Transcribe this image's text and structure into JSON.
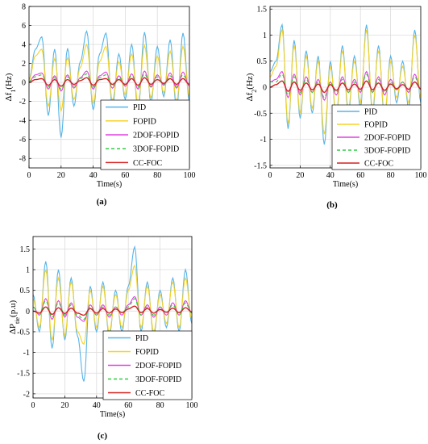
{
  "colors": {
    "PID": "#56b4e9",
    "FOPID": "#f5d327",
    "2DOF-FOPID": "#e040e0",
    "3DOF-FOPID": "#2ecc40",
    "CC-FOC": "#d62020",
    "grid": "#dcdcdc",
    "axis": "#000000"
  },
  "legend_entries": [
    "PID",
    "FOPID",
    "2DOF-FOPID",
    "3DOF-FOPID",
    "CC-FOC"
  ],
  "chart_data": [
    {
      "type": "line",
      "panel_label": "(a)",
      "xlabel": "Time(s)",
      "ylabel": "Δf₁(Hz)",
      "xlim": [
        0,
        100
      ],
      "ylim": [
        -9,
        8
      ],
      "xticks": [
        0,
        20,
        40,
        60,
        80,
        100
      ],
      "yticks": [
        -8,
        -6,
        -4,
        -2,
        0,
        2,
        4,
        6,
        8
      ],
      "grid": true,
      "legend_position": "lower-right",
      "x": [
        0,
        4,
        8,
        12,
        16,
        20,
        24,
        28,
        32,
        36,
        40,
        44,
        48,
        52,
        56,
        60,
        64,
        68,
        72,
        76,
        80,
        84,
        88,
        92,
        96,
        100
      ],
      "series": [
        {
          "name": "PID",
          "values": [
            0.3,
            3.5,
            4.8,
            -3.5,
            3.5,
            -5.8,
            3.6,
            -2.5,
            2.2,
            5.4,
            -2.9,
            3.0,
            5.2,
            -2.6,
            3.0,
            -1.8,
            4.0,
            -3.0,
            5.3,
            -2.1,
            3.8,
            -1.5,
            4.5,
            -2.8,
            5.2,
            -2.0
          ]
        },
        {
          "name": "FOPID",
          "values": [
            0.2,
            2.8,
            3.5,
            -2.5,
            2.5,
            -3.0,
            2.6,
            -1.8,
            1.6,
            4.0,
            -2.2,
            2.2,
            3.8,
            -1.9,
            2.2,
            -1.3,
            3.0,
            -2.2,
            3.9,
            -1.6,
            2.8,
            -1.1,
            3.3,
            -2.0,
            3.8,
            -1.5
          ]
        },
        {
          "name": "2DOF-FOPID",
          "values": [
            0.1,
            0.8,
            1.0,
            -0.7,
            0.7,
            -0.9,
            0.8,
            -0.6,
            0.5,
            1.2,
            -0.7,
            0.7,
            1.1,
            -0.6,
            0.7,
            -0.4,
            0.9,
            -0.7,
            1.2,
            -0.5,
            0.8,
            -0.3,
            1.0,
            -0.6,
            1.1,
            -0.4
          ]
        },
        {
          "name": "3DOF-FOPID",
          "values": [
            0.1,
            0.6,
            0.8,
            -0.5,
            0.5,
            -0.7,
            0.6,
            -0.4,
            0.4,
            0.9,
            -0.5,
            0.5,
            0.8,
            -0.4,
            0.5,
            -0.3,
            0.7,
            -0.5,
            0.9,
            -0.4,
            0.6,
            -0.2,
            0.7,
            -0.4,
            0.8,
            -0.3
          ]
        },
        {
          "name": "CC-FOC",
          "values": [
            0.0,
            0.3,
            0.4,
            -0.3,
            0.3,
            -0.4,
            0.3,
            -0.2,
            0.2,
            0.5,
            -0.3,
            0.3,
            0.4,
            -0.2,
            0.3,
            -0.2,
            0.4,
            -0.3,
            0.5,
            -0.2,
            0.3,
            -0.1,
            0.4,
            -0.2,
            0.4,
            -0.2
          ]
        }
      ]
    },
    {
      "type": "line",
      "panel_label": "(b)",
      "xlabel": "Time(s)",
      "ylabel": "Δf₂(Hz)",
      "xlim": [
        0,
        100
      ],
      "ylim": [
        -1.55,
        1.55
      ],
      "xticks": [
        0,
        20,
        40,
        60,
        80,
        100
      ],
      "yticks": [
        -1.5,
        -1,
        -0.5,
        0,
        0.5,
        1,
        1.5
      ],
      "grid": true,
      "legend_position": "lower-right",
      "x": [
        0,
        4,
        8,
        12,
        16,
        20,
        24,
        28,
        32,
        36,
        40,
        44,
        48,
        52,
        56,
        60,
        64,
        68,
        72,
        76,
        80,
        84,
        88,
        92,
        96,
        100
      ],
      "series": [
        {
          "name": "PID",
          "values": [
            0.3,
            0.5,
            1.2,
            -0.8,
            0.9,
            -0.6,
            0.7,
            -0.5,
            0.6,
            -1.1,
            0.5,
            -0.6,
            0.8,
            -0.5,
            0.6,
            -0.4,
            1.2,
            -0.5,
            0.8,
            -0.6,
            0.6,
            -0.3,
            0.5,
            -0.4,
            1.1,
            -0.3
          ]
        },
        {
          "name": "FOPID",
          "values": [
            0.2,
            0.4,
            1.1,
            -0.7,
            0.8,
            -0.5,
            0.6,
            -0.4,
            0.5,
            -0.9,
            0.4,
            -0.5,
            0.7,
            -0.4,
            0.5,
            -0.3,
            1.1,
            -0.4,
            0.7,
            -0.5,
            0.5,
            -0.2,
            0.4,
            -0.3,
            1.0,
            -0.2
          ]
        },
        {
          "name": "2DOF-FOPID",
          "values": [
            0.1,
            0.15,
            0.3,
            -0.2,
            0.25,
            -0.15,
            0.2,
            -0.1,
            0.15,
            -0.25,
            0.1,
            -0.15,
            0.2,
            -0.1,
            0.15,
            -0.1,
            0.3,
            -0.1,
            0.2,
            -0.15,
            0.15,
            -0.05,
            0.1,
            -0.1,
            0.25,
            -0.05
          ]
        },
        {
          "name": "3DOF-FOPID",
          "values": [
            0.1,
            0.1,
            0.25,
            -0.15,
            0.2,
            -0.1,
            0.15,
            -0.1,
            0.1,
            -0.2,
            0.1,
            -0.1,
            0.15,
            -0.1,
            0.1,
            -0.05,
            0.25,
            -0.1,
            0.15,
            -0.1,
            0.1,
            -0.05,
            0.1,
            -0.05,
            0.2,
            -0.05
          ]
        },
        {
          "name": "CC-FOC",
          "values": [
            0.0,
            0.05,
            0.12,
            -0.08,
            0.1,
            -0.06,
            0.08,
            -0.05,
            0.06,
            -0.1,
            0.05,
            -0.06,
            0.08,
            -0.05,
            0.06,
            -0.04,
            0.12,
            -0.05,
            0.08,
            -0.06,
            0.06,
            -0.03,
            0.05,
            -0.04,
            0.1,
            -0.03
          ]
        }
      ]
    },
    {
      "type": "line",
      "panel_label": "(c)",
      "xlabel": "Time(s)",
      "ylabel": "ΔP_tie(p.u)",
      "xlim": [
        0,
        100
      ],
      "ylim": [
        -2.1,
        1.8
      ],
      "xticks": [
        0,
        20,
        40,
        60,
        80,
        100
      ],
      "yticks": [
        -2,
        -1.5,
        -1,
        -0.5,
        0,
        0.5,
        1,
        1.5
      ],
      "grid": true,
      "legend_position": "lower-right",
      "x": [
        0,
        4,
        8,
        12,
        16,
        20,
        24,
        28,
        32,
        36,
        40,
        44,
        48,
        52,
        56,
        60,
        64,
        68,
        72,
        76,
        80,
        84,
        88,
        92,
        96,
        100
      ],
      "series": [
        {
          "name": "PID",
          "values": [
            0.4,
            -0.5,
            1.2,
            -0.9,
            1.0,
            -0.7,
            0.8,
            -0.6,
            -1.7,
            0.6,
            -0.5,
            0.7,
            -0.6,
            0.5,
            -0.5,
            0.6,
            1.55,
            -0.5,
            0.7,
            -0.6,
            0.5,
            -0.4,
            0.8,
            -0.5,
            1.0,
            -0.3
          ]
        },
        {
          "name": "FOPID",
          "values": [
            0.3,
            -0.4,
            1.0,
            -0.7,
            0.8,
            -0.6,
            0.7,
            -0.5,
            -0.8,
            0.5,
            -0.4,
            0.6,
            -0.5,
            0.4,
            -0.4,
            0.5,
            1.1,
            -0.4,
            0.6,
            -0.5,
            0.4,
            -0.3,
            0.7,
            -0.4,
            0.8,
            -0.2
          ]
        },
        {
          "name": "2DOF-FOPID",
          "values": [
            0.1,
            -0.1,
            0.3,
            -0.2,
            0.25,
            -0.15,
            0.2,
            -0.15,
            -0.25,
            0.15,
            -0.1,
            0.15,
            -0.15,
            0.1,
            -0.1,
            0.15,
            0.35,
            -0.1,
            0.15,
            -0.15,
            0.1,
            -0.1,
            0.2,
            -0.1,
            0.25,
            -0.05
          ]
        },
        {
          "name": "3DOF-FOPID",
          "values": [
            0.1,
            -0.1,
            0.25,
            -0.15,
            0.2,
            -0.1,
            0.15,
            -0.1,
            -0.2,
            0.1,
            -0.1,
            0.1,
            -0.1,
            0.1,
            -0.05,
            0.1,
            0.3,
            -0.1,
            0.1,
            -0.1,
            0.1,
            -0.05,
            0.15,
            -0.1,
            0.2,
            -0.05
          ]
        },
        {
          "name": "CC-FOC",
          "values": [
            0.0,
            -0.05,
            0.1,
            -0.08,
            0.08,
            -0.06,
            0.07,
            -0.05,
            -0.1,
            0.06,
            -0.05,
            0.06,
            -0.05,
            0.05,
            -0.04,
            0.05,
            0.12,
            -0.04,
            0.06,
            -0.05,
            0.04,
            -0.03,
            0.07,
            -0.04,
            0.08,
            -0.02
          ]
        }
      ]
    }
  ]
}
